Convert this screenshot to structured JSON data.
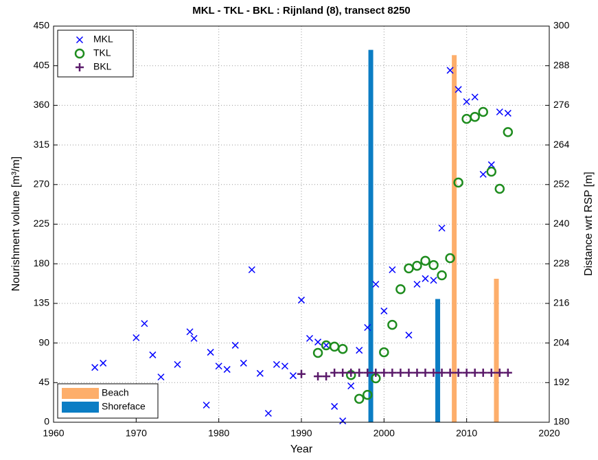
{
  "chart_data": {
    "type": "scatter",
    "title": "MKL - TKL - BKL : Rijnland (8), transect 8250",
    "x_label": "Year",
    "y_label": "Nourishment volume [m³/m]",
    "y2_label": "Distance wrt RSP [m]",
    "xlim": [
      1960,
      2020
    ],
    "xticks": [
      1960,
      1970,
      1980,
      1990,
      2000,
      2010,
      2020
    ],
    "ylim": [
      0,
      450
    ],
    "yticks": [
      0,
      45,
      90,
      135,
      180,
      225,
      270,
      315,
      360,
      405,
      450
    ],
    "y2lim": [
      180,
      300
    ],
    "y2ticks": [
      180,
      192,
      204,
      216,
      228,
      240,
      252,
      264,
      276,
      288,
      300
    ],
    "grid": true,
    "legend": "upper left",
    "bar_legend": "lower left",
    "series": [
      {
        "name": "MKL",
        "type": "scatter",
        "marker": "x",
        "color": "#0000ff",
        "axis": "y2",
        "x": [
          1965,
          1966,
          1970,
          1971,
          1972,
          1973,
          1975,
          1976.5,
          1977,
          1978.5,
          1979,
          1980,
          1981,
          1982,
          1983,
          1984,
          1985,
          1986,
          1987,
          1988,
          1989,
          1990,
          1991,
          1992,
          1993,
          1994,
          1995,
          1996,
          1997,
          1998,
          1999,
          2000,
          2001,
          2003,
          2004,
          2005,
          2006,
          2007,
          2008,
          2009,
          2010,
          2011,
          2012,
          2013,
          2014,
          2015
        ],
        "values": [
          196.6,
          197.9,
          205.6,
          209.9,
          200.4,
          193.7,
          197.5,
          207.4,
          205.4,
          185.2,
          201.2,
          197.0,
          196.0,
          203.3,
          197.9,
          226.2,
          194.8,
          182.7,
          197.5,
          197.0,
          194.1,
          217.0,
          205.4,
          204.3,
          203.3,
          184.8,
          180.4,
          191.0,
          201.8,
          208.7,
          221.8,
          213.7,
          226.2,
          206.4,
          221.8,
          223.5,
          223.0,
          238.8,
          286.6,
          280.8,
          277.1,
          278.5,
          255.1,
          258.0,
          274.0,
          273.6
        ]
      },
      {
        "name": "TKL",
        "type": "scatter",
        "marker": "o",
        "color": "#1e8c1e",
        "axis": "y2",
        "x": [
          1992,
          1993,
          1994,
          1995,
          1996,
          1997,
          1998,
          1999,
          2000,
          2001,
          2002,
          2003,
          2004,
          2005,
          2006,
          2007,
          2008,
          2009,
          2010,
          2011,
          2012,
          2013,
          2014,
          2015
        ],
        "values": [
          201.0,
          203.3,
          202.9,
          202.2,
          194.3,
          187.1,
          188.3,
          193.3,
          201.2,
          209.5,
          220.3,
          226.6,
          227.4,
          228.9,
          227.6,
          224.5,
          229.7,
          252.6,
          271.9,
          272.5,
          274.0,
          255.9,
          250.7,
          267.9
        ]
      },
      {
        "name": "BKL",
        "type": "scatter",
        "marker": "+",
        "color": "#5a1a6a",
        "axis": "y2",
        "x": [
          1990,
          1992,
          1993,
          1994,
          1995,
          1996,
          1997,
          1998,
          1999,
          2000,
          2001,
          2002,
          2003,
          2004,
          2005,
          2006,
          2007,
          2008,
          2009,
          2010,
          2011,
          2012,
          2013,
          2014,
          2015
        ],
        "values": [
          194.6,
          193.9,
          193.9,
          195.0,
          195.0,
          195.0,
          195.0,
          195.0,
          195.0,
          195.0,
          195.0,
          195.0,
          195.0,
          195.0,
          195.0,
          195.0,
          195.0,
          195.0,
          195.0,
          195.0,
          195.0,
          195.0,
          195.0,
          195.0,
          195.0
        ]
      },
      {
        "name": "Beach",
        "type": "bar",
        "color": "#fdae6b",
        "axis": "y",
        "x": [
          2008.5,
          2013.6
        ],
        "values": [
          417,
          163
        ]
      },
      {
        "name": "Shoreface",
        "type": "bar",
        "color": "#0b7dc4",
        "axis": "y",
        "x": [
          1998.4,
          2006.5
        ],
        "values": [
          423,
          140
        ]
      }
    ]
  }
}
